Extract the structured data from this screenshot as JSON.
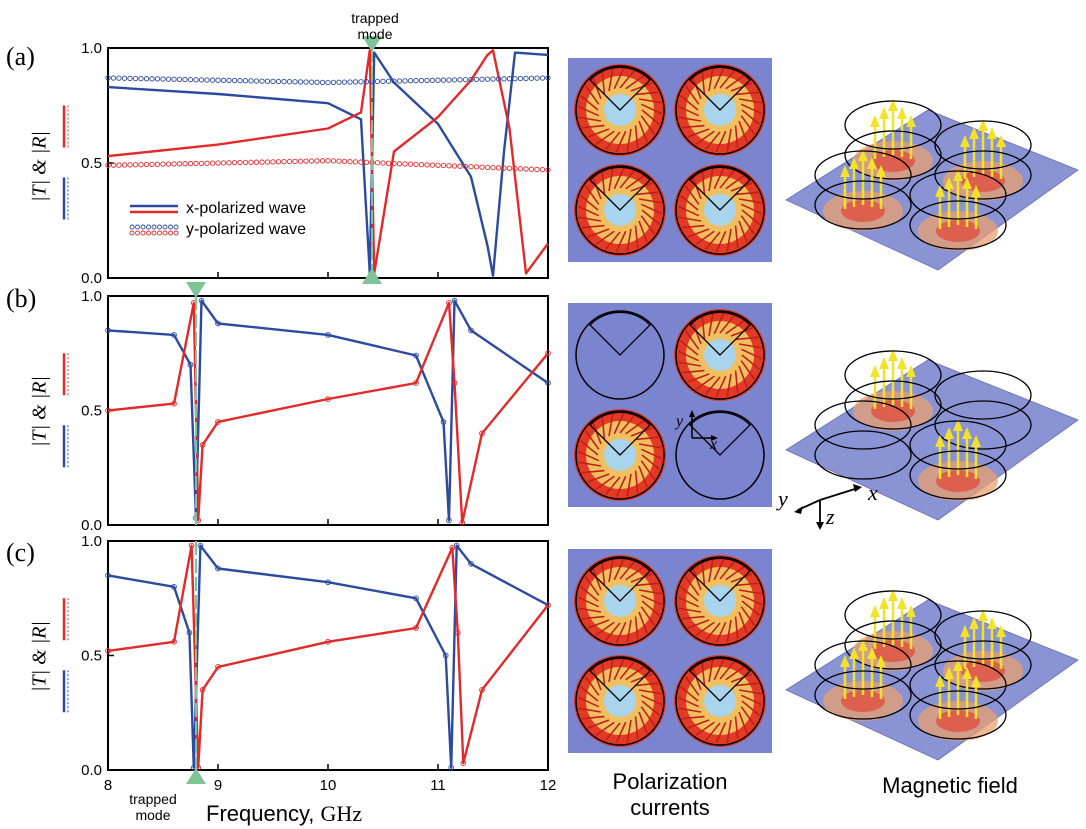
{
  "panels": [
    {
      "letter": "(a)"
    },
    {
      "letter": "(b)"
    },
    {
      "letter": "(c)"
    }
  ],
  "y_axis_label": "|T| & |R|",
  "x_axis": {
    "label_prefix": "Frequency, ",
    "label_unit": "GHz",
    "ticks": [
      "8",
      "9",
      "10",
      "11",
      "12"
    ]
  },
  "y_ticks": [
    "0.0",
    "0.5",
    "1.0"
  ],
  "legend": {
    "x_label": "x-polarized wave",
    "y_label": "y-polarized wave"
  },
  "annotations": {
    "trapped_mode_top": [
      "trapped",
      "mode"
    ],
    "trapped_mode_bottom": [
      "trapped",
      "mode"
    ]
  },
  "captions": {
    "polarization": [
      "Polarization",
      "currents"
    ],
    "magnetic": "Magnetic field"
  },
  "axes_labels_3d": {
    "x": "x",
    "y": "y",
    "z": "z"
  },
  "colors": {
    "T": "#2b4aa0",
    "R": "#e32a2a",
    "marker": "#7fc497",
    "sim_bg": "#7a84cf",
    "arrow_yellow": "#f2e22a"
  },
  "chart_data": [
    {
      "type": "line",
      "title": "",
      "xlabel": "Frequency, GHz",
      "ylabel": "|T| & |R|",
      "xlim": [
        8,
        12
      ],
      "ylim": [
        0,
        1
      ],
      "series": [
        {
          "name": "x-polarized wave",
          "quantity": "T",
          "x": [
            8.0,
            9.0,
            10.0,
            10.3,
            10.38,
            10.42,
            10.6,
            11.0,
            11.3,
            11.45,
            11.5,
            11.6,
            11.7,
            12.0
          ],
          "y": [
            0.83,
            0.8,
            0.76,
            0.69,
            0.02,
            0.98,
            0.85,
            0.67,
            0.44,
            0.14,
            0.01,
            0.55,
            0.98,
            0.97
          ]
        },
        {
          "name": "x-polarized wave",
          "quantity": "R",
          "x": [
            8.0,
            9.0,
            10.0,
            10.3,
            10.38,
            10.42,
            10.6,
            11.0,
            11.3,
            11.45,
            11.5,
            11.65,
            11.8,
            12.0
          ],
          "y": [
            0.53,
            0.58,
            0.65,
            0.72,
            0.99,
            0.02,
            0.55,
            0.7,
            0.86,
            0.97,
            0.99,
            0.65,
            0.02,
            0.15
          ]
        },
        {
          "name": "y-polarized wave",
          "quantity": "T",
          "x": [
            8.0,
            10.0,
            12.0
          ],
          "y": [
            0.87,
            0.85,
            0.87
          ]
        },
        {
          "name": "y-polarized wave",
          "quantity": "R",
          "x": [
            8.0,
            10.0,
            12.0
          ],
          "y": [
            0.49,
            0.51,
            0.47
          ]
        }
      ]
    },
    {
      "type": "line",
      "xlabel": "Frequency, GHz",
      "ylabel": "|T| & |R|",
      "xlim": [
        8,
        12
      ],
      "ylim": [
        0,
        1
      ],
      "series": [
        {
          "quantity": "T",
          "x": [
            8.0,
            8.6,
            8.75,
            8.8,
            8.85,
            9.0,
            10.0,
            10.8,
            11.05,
            11.1,
            11.15,
            11.3,
            12.0
          ],
          "y": [
            0.85,
            0.83,
            0.7,
            0.03,
            0.98,
            0.88,
            0.83,
            0.74,
            0.45,
            0.02,
            0.98,
            0.85,
            0.62
          ]
        },
        {
          "quantity": "R",
          "x": [
            8.0,
            8.6,
            8.78,
            8.82,
            8.86,
            9.0,
            10.0,
            10.8,
            11.1,
            11.15,
            11.22,
            11.4,
            12.0
          ],
          "y": [
            0.5,
            0.53,
            0.97,
            0.02,
            0.35,
            0.45,
            0.55,
            0.62,
            0.97,
            0.62,
            0.01,
            0.4,
            0.75
          ]
        }
      ]
    },
    {
      "type": "line",
      "xlabel": "Frequency, GHz",
      "ylabel": "|T| & |R|",
      "xlim": [
        8,
        12
      ],
      "ylim": [
        0,
        1
      ],
      "series": [
        {
          "quantity": "T",
          "x": [
            8.0,
            8.6,
            8.74,
            8.78,
            8.84,
            9.0,
            10.0,
            10.8,
            11.07,
            11.12,
            11.17,
            11.3,
            12.0
          ],
          "y": [
            0.85,
            0.8,
            0.6,
            0.01,
            0.98,
            0.88,
            0.82,
            0.75,
            0.5,
            0.01,
            0.98,
            0.9,
            0.72
          ]
        },
        {
          "quantity": "R",
          "x": [
            8.0,
            8.6,
            8.76,
            8.82,
            8.86,
            9.0,
            10.0,
            10.8,
            11.13,
            11.18,
            11.23,
            11.4,
            12.0
          ],
          "y": [
            0.52,
            0.56,
            0.98,
            0.01,
            0.35,
            0.45,
            0.56,
            0.62,
            0.97,
            0.6,
            0.03,
            0.35,
            0.72
          ]
        }
      ]
    }
  ]
}
